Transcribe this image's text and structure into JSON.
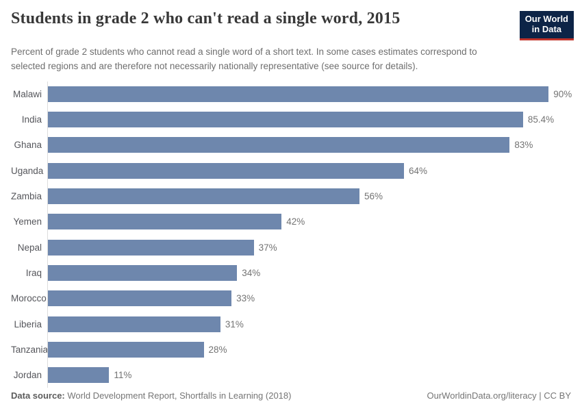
{
  "header": {
    "title": "Students in grade 2 who can't read a single word, 2015",
    "subtitle": "Percent of grade 2 students who cannot read a single word of a short text. In some cases estimates correspond to selected regions and are therefore not necessarily nationally representative (see source for details).",
    "logo": {
      "line1": "Our World",
      "line2": "in Data"
    }
  },
  "chart_data": {
    "type": "bar",
    "orientation": "horizontal",
    "title": "Students in grade 2 who can't read a single word, 2015",
    "xlabel": "",
    "ylabel": "",
    "categories": [
      "Malawi",
      "India",
      "Ghana",
      "Uganda",
      "Zambia",
      "Yemen",
      "Nepal",
      "Iraq",
      "Morocco",
      "Liberia",
      "Tanzania",
      "Jordan"
    ],
    "values": [
      90,
      85.4,
      83,
      64,
      56,
      42,
      37,
      34,
      33,
      31,
      28,
      11
    ],
    "value_labels": [
      "90%",
      "85.4%",
      "83%",
      "64%",
      "56%",
      "42%",
      "37%",
      "34%",
      "33%",
      "31%",
      "28%",
      "11%"
    ],
    "xlim": [
      0,
      96
    ],
    "grid": false,
    "legend": false,
    "bar_color": "#6e87ad"
  },
  "footer": {
    "source_label": "Data source:",
    "source_text": " World Development Report, Shortfalls in Learning (2018)",
    "right_text": "OurWorldinData.org/literacy | CC BY"
  },
  "colors": {
    "bar": "#6e87ad",
    "axis_line": "#dcdcdc",
    "title_text": "#383838",
    "subtitle_text": "#6e6e6e",
    "logo_bg": "#0d2447",
    "logo_accent": "#c0332b"
  }
}
